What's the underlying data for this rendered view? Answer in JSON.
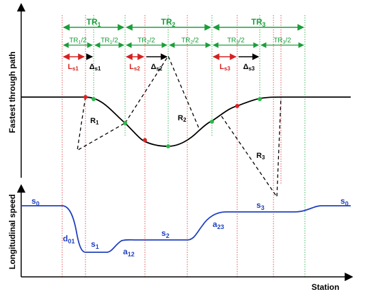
{
  "colors": {
    "green": "#1a9e3a",
    "red": "#d62020",
    "blue": "#1f3fbf",
    "black": "#000000"
  },
  "axes": {
    "upper_y_label": "Fastest through path",
    "lower_y_label": "Longitudinal speed",
    "x_label": "Station"
  },
  "transitions": {
    "tr1": {
      "label": "TR",
      "sub": "1"
    },
    "tr2": {
      "label": "TR",
      "sub": "2"
    },
    "tr3": {
      "label": "TR",
      "sub": "3"
    },
    "half1a": {
      "label": "TR",
      "sub": "1",
      "tail": "/2"
    },
    "half1b": {
      "label": "TR",
      "sub": "1",
      "tail": "/2"
    },
    "half2a": {
      "label": "TR",
      "sub": "2",
      "tail": "/2"
    },
    "half2b": {
      "label": "TR",
      "sub": "2",
      "tail": "/2"
    },
    "half3a": {
      "label": "TR",
      "sub": "3",
      "tail": "/2"
    },
    "half3b": {
      "label": "TR",
      "sub": "3",
      "tail": "/2"
    }
  },
  "segments": {
    "ls1": {
      "label": "L",
      "sub": "s1"
    },
    "ls2": {
      "label": "L",
      "sub": "s2"
    },
    "ls3": {
      "label": "L",
      "sub": "s3"
    },
    "ds1": {
      "label": "Δ",
      "sub": "s1"
    },
    "ds2": {
      "label": "Δ",
      "sub": "s2"
    },
    "ds3": {
      "label": "Δ",
      "sub": "s3"
    }
  },
  "radii": {
    "r1": {
      "label": "R",
      "sub": "1"
    },
    "r2": {
      "label": "R",
      "sub": "2"
    },
    "r3": {
      "label": "R",
      "sub": "3"
    }
  },
  "speed_labels": {
    "s0_left": {
      "label": "s",
      "sub": "0"
    },
    "d01": {
      "label": "d",
      "sub": "01"
    },
    "s1": {
      "label": "s",
      "sub": "1"
    },
    "a12": {
      "label": "a",
      "sub": "12"
    },
    "s2": {
      "label": "s",
      "sub": "2"
    },
    "a23": {
      "label": "a",
      "sub": "23"
    },
    "s3": {
      "label": "s",
      "sub": "3"
    },
    "s0_right": {
      "label": "s",
      "sub": "0"
    }
  }
}
